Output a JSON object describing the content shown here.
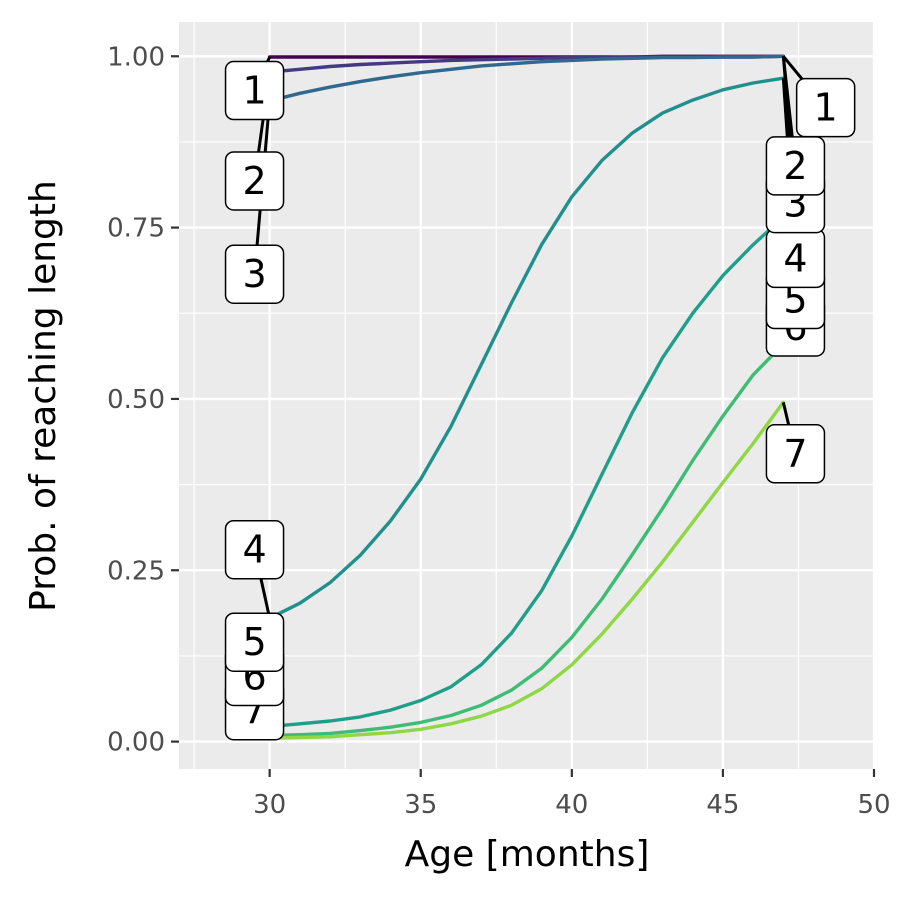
{
  "chart_data": {
    "type": "line",
    "xlabel": "Age [months]",
    "ylabel": "Prob. of reaching length",
    "xlim": [
      27,
      50
    ],
    "ylim": [
      -0.04,
      1.05
    ],
    "x_ticks": [
      30,
      35,
      40,
      45,
      50
    ],
    "y_ticks": [
      0.0,
      0.25,
      0.5,
      0.75,
      1.0
    ],
    "x_tick_labels": [
      "30",
      "35",
      "40",
      "45",
      "50"
    ],
    "y_tick_labels": [
      "0.00",
      "0.25",
      "0.50",
      "0.75",
      "1.00"
    ],
    "grid": true,
    "panel_background": "#ebebeb",
    "x": [
      30,
      31,
      32,
      33,
      34,
      35,
      36,
      37,
      38,
      39,
      40,
      41,
      42,
      43,
      44,
      45,
      46,
      47
    ],
    "series": [
      {
        "name": "1",
        "color": "#440154",
        "values": [
          0.999,
          0.999,
          0.999,
          0.999,
          0.999,
          0.999,
          0.999,
          0.999,
          0.999,
          0.999,
          0.999,
          0.999,
          0.999,
          1.0,
          1.0,
          1.0,
          1.0,
          1.0
        ]
      },
      {
        "name": "2",
        "color": "#443a83",
        "values": [
          0.977,
          0.981,
          0.985,
          0.988,
          0.99,
          0.992,
          0.994,
          0.995,
          0.996,
          0.997,
          0.998,
          0.998,
          0.999,
          0.999,
          0.999,
          0.999,
          0.999,
          1.0
        ]
      },
      {
        "name": "3",
        "color": "#31688e",
        "values": [
          0.935,
          0.946,
          0.955,
          0.963,
          0.97,
          0.976,
          0.981,
          0.986,
          0.989,
          0.992,
          0.994,
          0.996,
          0.997,
          0.998,
          0.998,
          0.999,
          0.999,
          1.0
        ]
      },
      {
        "name": "4",
        "color": "#21908d",
        "values": [
          0.18,
          0.202,
          0.232,
          0.272,
          0.322,
          0.383,
          0.46,
          0.55,
          0.64,
          0.725,
          0.795,
          0.848,
          0.888,
          0.917,
          0.936,
          0.951,
          0.961,
          0.968
        ]
      },
      {
        "name": "5",
        "color": "#1f9e89",
        "values": [
          0.022,
          0.026,
          0.03,
          0.036,
          0.046,
          0.06,
          0.08,
          0.112,
          0.158,
          0.22,
          0.3,
          0.39,
          0.48,
          0.56,
          0.625,
          0.68,
          0.725,
          0.765
        ]
      },
      {
        "name": "6",
        "color": "#3fbc73",
        "values": [
          0.009,
          0.01,
          0.012,
          0.016,
          0.021,
          0.028,
          0.038,
          0.053,
          0.075,
          0.107,
          0.152,
          0.208,
          0.273,
          0.34,
          0.41,
          0.475,
          0.535,
          0.58
        ]
      },
      {
        "name": "7",
        "color": "#8fd744",
        "values": [
          0.005,
          0.006,
          0.007,
          0.01,
          0.013,
          0.018,
          0.026,
          0.037,
          0.053,
          0.077,
          0.112,
          0.157,
          0.208,
          0.262,
          0.32,
          0.378,
          0.435,
          0.495
        ]
      }
    ],
    "labels_left": [
      {
        "text": "1",
        "x": 29.5,
        "y": 0.95
      },
      {
        "text": "2",
        "x": 29.5,
        "y": 0.818
      },
      {
        "text": "3",
        "x": 29.5,
        "y": 0.682
      },
      {
        "text": "4",
        "x": 29.5,
        "y": 0.28
      },
      {
        "text": "5",
        "x": 29.5,
        "y": 0.145
      },
      {
        "text": "6",
        "x": 29.5,
        "y": 0.095
      },
      {
        "text": "7",
        "x": 29.5,
        "y": 0.045
      }
    ],
    "labels_right": [
      {
        "text": "1",
        "x": 48.4,
        "y": 0.925
      },
      {
        "text": "2",
        "x": 47.4,
        "y": 0.84
      },
      {
        "text": "3",
        "x": 47.4,
        "y": 0.785
      },
      {
        "text": "4",
        "x": 47.4,
        "y": 0.705
      },
      {
        "text": "5",
        "x": 47.4,
        "y": 0.645
      },
      {
        "text": "6",
        "x": 47.4,
        "y": 0.605
      },
      {
        "text": "7",
        "x": 47.4,
        "y": 0.42
      }
    ]
  }
}
